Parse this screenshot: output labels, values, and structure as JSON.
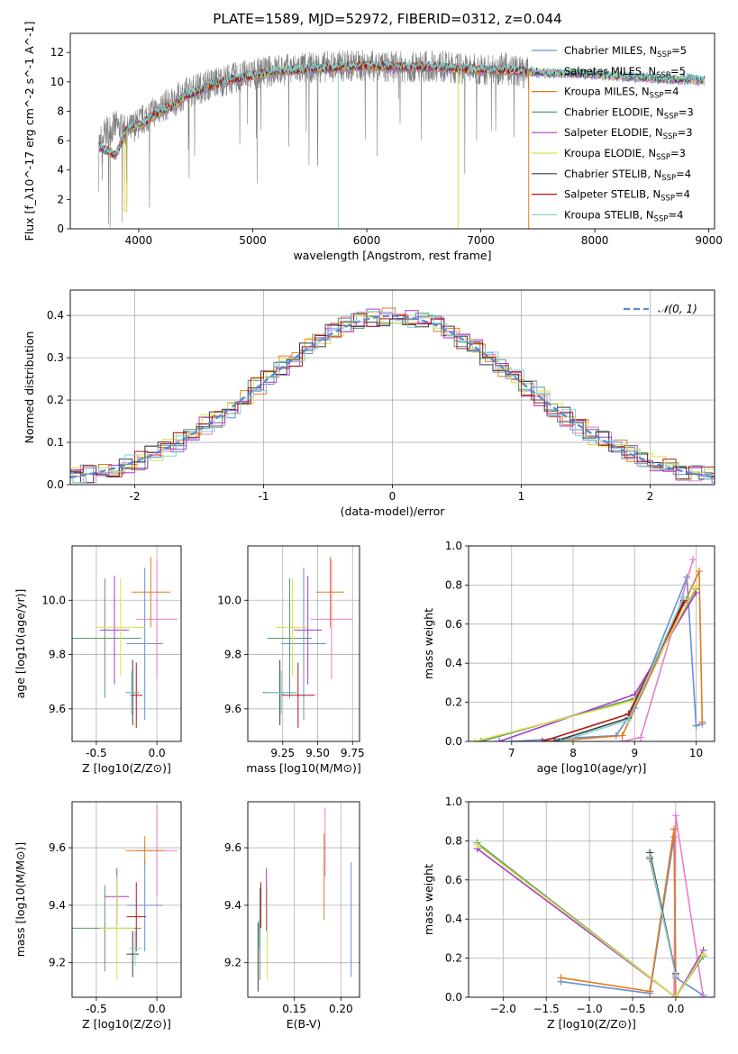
{
  "page": {
    "title": "PLATE=1589, MJD=52972, FIBERID=0312, z=0.044"
  },
  "colors": [
    "#6a8fd0",
    "#e67fc8",
    "#e07b1f",
    "#5b9a6b",
    "#a83cc8",
    "#d9e04a",
    "#3b3b3b",
    "#b01616",
    "#7dd3d6"
  ],
  "chart_data": [
    {
      "id": "spectrum",
      "type": "line",
      "xlabel": "wavelength [Angstrom, rest frame]",
      "ylabel": "Flux [f_λ10^-17 erg cm^-2 s^-1 A^-1]",
      "xlim": [
        3400,
        9050
      ],
      "ylim": [
        0,
        13.3
      ],
      "xticks": [
        4000,
        5000,
        6000,
        7000,
        8000,
        9000
      ],
      "yticks": [
        0,
        2,
        4,
        6,
        8,
        10,
        12
      ],
      "observed": {
        "color": "#808080",
        "x": [
          3650,
          3700,
          3800,
          3900,
          4000,
          4100,
          4200,
          4300,
          4400,
          4600,
          4800,
          5000,
          5200,
          5400,
          5600,
          5800,
          6000,
          6200,
          6400,
          6600,
          6800,
          7000,
          7200,
          7400
        ],
        "y": [
          5.8,
          6.5,
          7.0,
          6.6,
          7.2,
          7.8,
          8.3,
          8.6,
          9.2,
          9.8,
          10.2,
          10.5,
          10.8,
          10.9,
          11.0,
          11.1,
          11.1,
          11.0,
          11.0,
          11.1,
          10.9,
          10.8,
          10.9,
          10.6
        ]
      },
      "model_continuum": {
        "x": [
          3650,
          3700,
          3800,
          3900,
          4000,
          4100,
          4200,
          4300,
          4400,
          4600,
          4800,
          5000,
          5200,
          5400,
          5600,
          5800,
          6000,
          6200,
          6400,
          6600,
          6800,
          7000,
          7200,
          7400,
          7600,
          7800,
          8000,
          8200,
          8400,
          8600,
          8800,
          8960
        ],
        "y": [
          5.6,
          5.4,
          5.0,
          6.8,
          7.0,
          7.5,
          8.0,
          8.3,
          9.0,
          9.6,
          10.1,
          10.4,
          10.7,
          10.8,
          10.9,
          11.0,
          11.1,
          11.0,
          11.0,
          11.0,
          10.9,
          10.8,
          10.8,
          10.7,
          10.6,
          10.6,
          10.5,
          10.4,
          10.3,
          10.2,
          10.2,
          10.1
        ]
      },
      "series": [
        {
          "name": "Chabrier MILES, N_SSP=5"
        },
        {
          "name": "Salpeter MILES, N_SSP=5"
        },
        {
          "name": "Kroupa MILES, N_SSP=4"
        },
        {
          "name": "Chabrier ELODIE, N_SSP=3"
        },
        {
          "name": "Salpeter ELODIE, N_SSP=3"
        },
        {
          "name": "Kroupa ELODIE, N_SSP=3"
        },
        {
          "name": "Chabrier STELIB, N_SSP=4"
        },
        {
          "name": "Salpeter STELIB, N_SSP=4"
        },
        {
          "name": "Kroupa STELIB, N_SSP=4"
        }
      ],
      "legend": "upper-right"
    },
    {
      "id": "residuals",
      "type": "line",
      "xlabel": "(data-model)/error",
      "ylabel": "Normed distribution",
      "xlim": [
        -2.5,
        2.5
      ],
      "ylim": [
        0,
        0.46
      ],
      "xticks": [
        -2,
        -1,
        0,
        1,
        2
      ],
      "yticks": [
        0.0,
        0.1,
        0.2,
        0.3,
        0.4
      ],
      "grid": true,
      "reference": {
        "name": "𝒩(0, 1)",
        "color": "#5b87d6"
      },
      "legend": "upper-right"
    },
    {
      "id": "age_vs_Z",
      "type": "scatter",
      "xlabel": "Z [log10(Z/Z⊙)]",
      "ylabel": "age [log10(age/yr)]",
      "xlim": [
        -0.7,
        0.2
      ],
      "ylim": [
        9.48,
        10.2
      ],
      "xticks": [
        -0.5,
        0.0
      ],
      "yticks": [
        9.6,
        9.8,
        10.0
      ],
      "grid": true,
      "points": [
        {
          "x": -0.1,
          "xe": 0.15,
          "y": 9.84,
          "ye": 0.28
        },
        {
          "x": 0.0,
          "xe": 0.17,
          "y": 9.93,
          "ye": 0.22
        },
        {
          "x": -0.05,
          "xe": 0.16,
          "y": 10.03,
          "ye": 0.13
        },
        {
          "x": -0.43,
          "xe": 0.3,
          "y": 9.86,
          "ye": 0.22
        },
        {
          "x": -0.35,
          "xe": 0.12,
          "y": 9.89,
          "ye": 0.2
        },
        {
          "x": -0.3,
          "xe": 0.2,
          "y": 9.9,
          "ye": 0.18
        },
        {
          "x": -0.2,
          "xe": 0.05,
          "y": 9.66,
          "ye": 0.12
        },
        {
          "x": -0.17,
          "xe": 0.05,
          "y": 9.65,
          "ye": 0.12
        },
        {
          "x": -0.21,
          "xe": 0.05,
          "y": 9.66,
          "ye": 0.08
        }
      ]
    },
    {
      "id": "age_vs_mass",
      "type": "scatter",
      "xlabel": "mass [log10(M/M⊙)]",
      "ylabel": "",
      "xlim": [
        9.0,
        9.8
      ],
      "ylim": [
        9.48,
        10.2
      ],
      "xticks": [
        9.25,
        9.5,
        9.75
      ],
      "yticks": [
        9.6,
        9.8,
        10.0
      ],
      "grid": true,
      "points": [
        {
          "x": 9.4,
          "xe": 0.16,
          "y": 9.84,
          "ye": 0.28
        },
        {
          "x": 9.6,
          "xe": 0.15,
          "y": 9.93,
          "ye": 0.22
        },
        {
          "x": 9.59,
          "xe": 0.1,
          "y": 10.03,
          "ye": 0.13
        },
        {
          "x": 9.3,
          "xe": 0.16,
          "y": 9.86,
          "ye": 0.22
        },
        {
          "x": 9.43,
          "xe": 0.1,
          "y": 9.89,
          "ye": 0.2
        },
        {
          "x": 9.32,
          "xe": 0.12,
          "y": 9.9,
          "ye": 0.18
        },
        {
          "x": 9.23,
          "xe": 0.12,
          "y": 9.66,
          "ye": 0.12
        },
        {
          "x": 9.36,
          "xe": 0.12,
          "y": 9.65,
          "ye": 0.12
        },
        {
          "x": 9.24,
          "xe": 0.12,
          "y": 9.66,
          "ye": 0.08
        }
      ]
    },
    {
      "id": "weight_vs_age",
      "type": "line",
      "xlabel": "age [log10(age/yr)]",
      "ylabel": "mass weight",
      "xlim": [
        6.3,
        10.3
      ],
      "ylim": [
        0,
        1.0
      ],
      "xticks": [
        7,
        8,
        9,
        10
      ],
      "yticks": [
        0.0,
        0.2,
        0.4,
        0.6,
        0.8,
        1.0
      ],
      "grid": true,
      "series": [
        {
          "x": [
            7.0,
            8.7,
            9.0,
            9.85,
            10.0,
            10.1
          ],
          "y": [
            0.0,
            0.03,
            0.17,
            0.84,
            0.08,
            0.09
          ]
        },
        {
          "x": [
            8.8,
            9.1,
            9.95
          ],
          "y": [
            0.0,
            0.02,
            0.93
          ]
        },
        {
          "x": [
            7.6,
            8.8,
            10.05,
            10.1
          ],
          "y": [
            0.0,
            0.03,
            0.87,
            0.1
          ]
        },
        {
          "x": [
            6.5,
            9.0,
            10.0
          ],
          "y": [
            0.0,
            0.22,
            0.78
          ]
        },
        {
          "x": [
            6.8,
            9.0,
            10.0
          ],
          "y": [
            0.0,
            0.24,
            0.76
          ]
        },
        {
          "x": [
            6.4,
            9.0,
            10.0
          ],
          "y": [
            0.0,
            0.21,
            0.79
          ]
        },
        {
          "x": [
            7.7,
            8.9,
            9.8
          ],
          "y": [
            0.0,
            0.12,
            0.72
          ]
        },
        {
          "x": [
            7.5,
            8.9,
            9.8
          ],
          "y": [
            0.0,
            0.14,
            0.71
          ]
        },
        {
          "x": [
            7.8,
            8.9,
            9.8
          ],
          "y": [
            0.0,
            0.11,
            0.74
          ]
        }
      ]
    },
    {
      "id": "mass_vs_Z",
      "type": "scatter",
      "xlabel": "Z [log10(Z/Z⊙)]",
      "ylabel": "mass [log10(M/M⊙)]",
      "xlim": [
        -0.7,
        0.2
      ],
      "ylim": [
        9.08,
        9.76
      ],
      "xticks": [
        -0.5,
        0.0
      ],
      "yticks": [
        9.2,
        9.4,
        9.6
      ],
      "grid": true,
      "points": [
        {
          "x": -0.1,
          "xe": 0.15,
          "y": 9.4,
          "ye": 0.16
        },
        {
          "x": 0.0,
          "xe": 0.17,
          "y": 9.59,
          "ye": 0.16
        },
        {
          "x": -0.1,
          "xe": 0.16,
          "y": 9.59,
          "ye": 0.05
        },
        {
          "x": -0.43,
          "xe": 0.3,
          "y": 9.32,
          "ye": 0.15
        },
        {
          "x": -0.33,
          "xe": 0.1,
          "y": 9.43,
          "ye": 0.1
        },
        {
          "x": -0.33,
          "xe": 0.14,
          "y": 9.32,
          "ye": 0.18
        },
        {
          "x": -0.2,
          "xe": 0.05,
          "y": 9.23,
          "ye": 0.08
        },
        {
          "x": -0.17,
          "xe": 0.08,
          "y": 9.36,
          "ye": 0.12
        },
        {
          "x": -0.18,
          "xe": 0.05,
          "y": 9.25,
          "ye": 0.06
        }
      ]
    },
    {
      "id": "mass_vs_ebv",
      "type": "scatter",
      "xlabel": "E(B-V)",
      "ylabel": "",
      "xlim": [
        0.1,
        0.22
      ],
      "ylim": [
        9.08,
        9.76
      ],
      "xticks": [
        0.15,
        0.2
      ],
      "yticks": [
        9.2,
        9.4,
        9.6
      ],
      "grid": true,
      "points": [
        {
          "x": 0.211,
          "y": 9.35,
          "ye": 0.2
        },
        {
          "x": 0.183,
          "y": 9.62,
          "ye": 0.12
        },
        {
          "x": 0.182,
          "y": 9.5,
          "ye": 0.15
        },
        {
          "x": 0.113,
          "y": 9.3,
          "ye": 0.16
        },
        {
          "x": 0.12,
          "y": 9.42,
          "ye": 0.11
        },
        {
          "x": 0.121,
          "y": 9.3,
          "ye": 0.16
        },
        {
          "x": 0.111,
          "y": 9.22,
          "ye": 0.12
        },
        {
          "x": 0.114,
          "y": 9.4,
          "ye": 0.08
        },
        {
          "x": 0.112,
          "y": 9.3,
          "ye": 0.05
        }
      ]
    },
    {
      "id": "weight_vs_Z",
      "type": "line",
      "xlabel": "Z [log10(Z/Z⊙)]",
      "ylabel": "mass weight",
      "xlim": [
        -2.4,
        0.45
      ],
      "ylim": [
        0,
        1.0
      ],
      "xticks": [
        -2.0,
        -1.5,
        -1.0,
        -0.5,
        0.0
      ],
      "yticks": [
        0.0,
        0.2,
        0.4,
        0.6,
        0.8,
        1.0
      ],
      "grid": true,
      "series": [
        {
          "x": [
            -1.33,
            -0.3,
            -0.02,
            0.0,
            0.32
          ],
          "y": [
            0.08,
            0.02,
            0.82,
            0.1,
            0.01
          ]
        },
        {
          "x": [
            -0.02,
            0.0,
            0.32
          ],
          "y": [
            0.0,
            0.93,
            0.0
          ]
        },
        {
          "x": [
            -1.33,
            -0.3,
            -0.02,
            0.0
          ],
          "y": [
            0.1,
            0.03,
            0.86,
            0.0
          ]
        },
        {
          "x": [
            -2.3,
            0.0,
            0.32
          ],
          "y": [
            0.79,
            0.0,
            0.21
          ]
        },
        {
          "x": [
            -2.3,
            0.0,
            0.32
          ],
          "y": [
            0.76,
            0.0,
            0.24
          ]
        },
        {
          "x": [
            -2.3,
            0.0,
            0.32
          ],
          "y": [
            0.78,
            0.0,
            0.22
          ]
        },
        {
          "x": [
            -0.3,
            0.0
          ],
          "y": [
            0.74,
            0.12
          ]
        },
        {
          "x": [
            -0.3,
            0.0
          ],
          "y": [
            0.71,
            0.12
          ]
        },
        {
          "x": [
            -0.3,
            0.0
          ],
          "y": [
            0.72,
            0.11
          ]
        }
      ]
    }
  ]
}
